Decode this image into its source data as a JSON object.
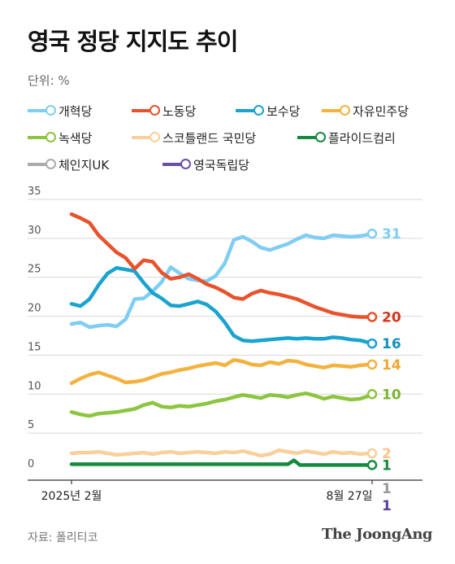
{
  "title": "영국 정당 지지도 추이",
  "unit": "단위: %",
  "source": "자료: 폴리티코",
  "brand": "The JoongAng",
  "chart_data": {
    "type": "line",
    "x_start_label": "2025년 2월",
    "x_end_label": "8월 27일",
    "ylim": [
      0,
      35
    ],
    "yticks": [
      0,
      5,
      10,
      15,
      20,
      25,
      30,
      35
    ],
    "grid": true,
    "legend_placement": "top",
    "series": [
      {
        "name": "개혁당",
        "color": "#7fcdf2",
        "end_label": "31",
        "label_color": "#7fcdf2",
        "x": [
          0,
          3,
          6,
          9,
          12,
          15,
          18,
          21,
          24,
          27,
          30,
          33,
          36,
          39,
          42,
          45,
          48,
          51,
          54,
          57,
          60,
          63,
          66,
          69,
          72,
          75,
          78,
          81,
          84,
          87,
          90,
          93,
          96,
          99,
          100
        ],
        "values": [
          19,
          19.2,
          18.6,
          18.8,
          18.9,
          18.7,
          19.6,
          22.2,
          22.3,
          23.2,
          24.4,
          26.3,
          25.5,
          24.8,
          24.6,
          24.5,
          25.2,
          26.8,
          29.8,
          30.2,
          29.6,
          28.8,
          28.5,
          28.9,
          29.3,
          29.9,
          30.4,
          30.1,
          30.0,
          30.4,
          30.3,
          30.2,
          30.3,
          30.5,
          30.6
        ]
      },
      {
        "name": "노동당",
        "color": "#e8522c",
        "end_label": "20",
        "label_color": "#d4341a",
        "x": [
          0,
          3,
          6,
          9,
          12,
          15,
          18,
          21,
          24,
          27,
          30,
          33,
          36,
          39,
          42,
          45,
          48,
          51,
          54,
          57,
          60,
          63,
          66,
          69,
          72,
          75,
          78,
          81,
          84,
          87,
          90,
          93,
          96,
          99,
          100
        ],
        "values": [
          33.1,
          32.6,
          32.0,
          30.4,
          29.3,
          28.2,
          27.5,
          26.1,
          27.2,
          27.0,
          25.6,
          24.8,
          25.0,
          25.4,
          24.8,
          24.1,
          23.7,
          23.1,
          22.4,
          22.2,
          22.9,
          23.3,
          23.0,
          22.8,
          22.5,
          22.2,
          21.7,
          21.2,
          20.8,
          20.4,
          20.2,
          20.0,
          19.9,
          19.9,
          19.9
        ]
      },
      {
        "name": "보수당",
        "color": "#1aa3cf",
        "end_label": "16",
        "label_color": "#1190bd",
        "x": [
          0,
          3,
          6,
          9,
          12,
          15,
          18,
          21,
          24,
          27,
          30,
          33,
          36,
          39,
          42,
          45,
          48,
          51,
          54,
          57,
          60,
          63,
          66,
          69,
          72,
          75,
          78,
          81,
          84,
          87,
          90,
          93,
          96,
          99,
          100
        ],
        "values": [
          21.6,
          21.3,
          22.2,
          24.0,
          25.5,
          26.2,
          26.0,
          25.8,
          24.3,
          23.0,
          22.3,
          21.4,
          21.3,
          21.6,
          21.9,
          21.5,
          20.6,
          19.2,
          17.5,
          16.9,
          16.8,
          16.9,
          17.0,
          17.1,
          17.2,
          17.1,
          17.2,
          17.1,
          17.1,
          17.3,
          17.2,
          17.0,
          16.9,
          16.6,
          16.5
        ]
      },
      {
        "name": "자유민주당",
        "color": "#f3b240",
        "end_label": "14",
        "label_color": "#f0a830",
        "x": [
          0,
          3,
          6,
          9,
          12,
          15,
          18,
          21,
          24,
          27,
          30,
          33,
          36,
          39,
          42,
          45,
          48,
          51,
          54,
          57,
          60,
          63,
          66,
          69,
          72,
          75,
          78,
          81,
          84,
          87,
          90,
          93,
          96,
          99,
          100
        ],
        "values": [
          11.4,
          12.0,
          12.5,
          12.8,
          12.4,
          12.0,
          11.5,
          11.6,
          11.8,
          12.2,
          12.6,
          12.8,
          13.1,
          13.3,
          13.6,
          13.8,
          14.0,
          13.7,
          14.4,
          14.2,
          13.8,
          13.7,
          14.1,
          13.9,
          14.3,
          14.2,
          13.8,
          13.6,
          13.4,
          13.7,
          13.6,
          13.5,
          13.7,
          13.8,
          13.8
        ]
      },
      {
        "name": "녹색당",
        "color": "#8cc540",
        "end_label": "10",
        "label_color": "#7ab531",
        "x": [
          0,
          3,
          6,
          9,
          12,
          15,
          18,
          21,
          24,
          27,
          30,
          33,
          36,
          39,
          42,
          45,
          48,
          51,
          54,
          57,
          60,
          63,
          66,
          69,
          72,
          75,
          78,
          81,
          84,
          87,
          90,
          93,
          96,
          99,
          100
        ],
        "values": [
          7.7,
          7.4,
          7.2,
          7.5,
          7.6,
          7.7,
          7.9,
          8.1,
          8.6,
          8.9,
          8.4,
          8.3,
          8.5,
          8.4,
          8.6,
          8.8,
          9.1,
          9.3,
          9.6,
          9.9,
          9.7,
          9.5,
          9.9,
          9.8,
          9.6,
          9.9,
          10.1,
          9.8,
          9.4,
          9.7,
          9.5,
          9.3,
          9.4,
          9.8,
          10.0
        ]
      },
      {
        "name": "스코틀랜드 국민당",
        "color": "#f9cf9b",
        "end_label": "2",
        "label_color": "#f7c48a",
        "x": [
          0,
          3,
          6,
          9,
          12,
          15,
          18,
          21,
          24,
          27,
          30,
          33,
          36,
          39,
          42,
          45,
          48,
          51,
          54,
          57,
          60,
          63,
          66,
          69,
          72,
          75,
          78,
          81,
          84,
          87,
          90,
          93,
          96,
          99,
          100
        ],
        "values": [
          2.4,
          2.5,
          2.5,
          2.6,
          2.4,
          2.2,
          2.3,
          2.4,
          2.5,
          2.3,
          2.5,
          2.6,
          2.4,
          2.5,
          2.6,
          2.5,
          2.4,
          2.6,
          2.5,
          2.7,
          2.4,
          2.1,
          2.3,
          2.8,
          2.6,
          2.4,
          2.7,
          2.5,
          2.3,
          2.6,
          2.4,
          2.5,
          2.3,
          2.4,
          2.4
        ]
      },
      {
        "name": "플라이드컴리",
        "color": "#148a3e",
        "end_label": "1",
        "label_color": "#148a3e",
        "x": [
          0,
          10,
          20,
          30,
          40,
          50,
          60,
          70,
          72,
          74,
          76,
          80,
          90,
          100
        ],
        "values": [
          1.0,
          1.0,
          1.0,
          1.0,
          1.0,
          1.0,
          1.0,
          1.0,
          1.0,
          1.5,
          0.9,
          0.9,
          0.9,
          0.9
        ]
      },
      {
        "name": "체인지UK",
        "color": "#aaaaaa",
        "end_label": "1",
        "label_color": "#999999",
        "end_only": true,
        "x": [],
        "values": []
      },
      {
        "name": "영국독립당",
        "color": "#6a4ea8",
        "end_label": "1",
        "label_color": "#5b3f9a",
        "end_only": true,
        "x": [],
        "values": []
      }
    ]
  }
}
